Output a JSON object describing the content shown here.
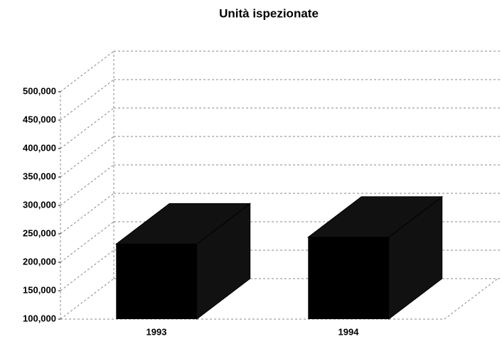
{
  "chart_data": {
    "type": "bar3d",
    "title": "Unità ispezionate",
    "categories": [
      "1993",
      "1994"
    ],
    "values": [
      232000,
      244000
    ],
    "color": "#000000",
    "ylim": [
      100000,
      500000
    ],
    "yticks": [
      {
        "value": 100000,
        "label": "100,000"
      },
      {
        "value": 150000,
        "label": "150,000"
      },
      {
        "value": 200000,
        "label": "200,000"
      },
      {
        "value": 250000,
        "label": "250,000"
      },
      {
        "value": 300000,
        "label": "300,000"
      },
      {
        "value": 350000,
        "label": "350,000"
      },
      {
        "value": 400000,
        "label": "400,000"
      },
      {
        "value": 450000,
        "label": "450,000"
      },
      {
        "value": 500000,
        "label": "500,000"
      }
    ],
    "grid": true
  }
}
